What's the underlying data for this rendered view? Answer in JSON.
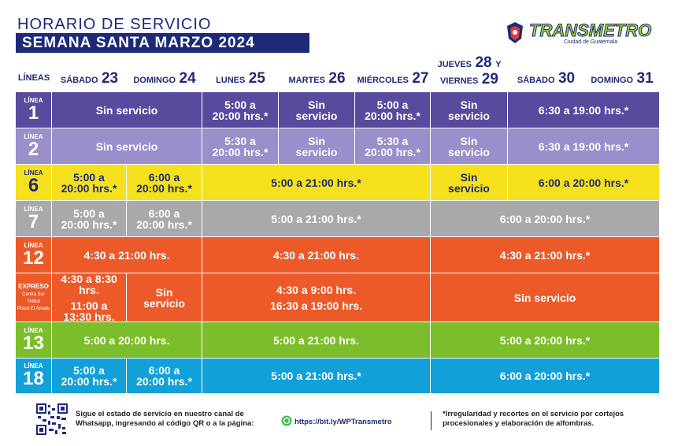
{
  "header": {
    "title": "HORARIO DE SERVICIO",
    "subtitle": "SEMANA SANTA MARZO 2024",
    "logo": "TRANSMETRO",
    "logo_sub": "Ciudad de Guatemala"
  },
  "columns": [
    {
      "day": "LÍNEAS"
    },
    {
      "day": "SÁBADO",
      "num": "23"
    },
    {
      "day": "DOMINGO",
      "num": "24"
    },
    {
      "day": "LUNES",
      "num": "25"
    },
    {
      "day": "MARTES",
      "num": "26"
    },
    {
      "day": "MIÉRCOLES",
      "num": "27"
    },
    {
      "day": "JUEVES",
      "num": "28",
      "joiner": "Y",
      "day2": "VIERNES",
      "num2": "29"
    },
    {
      "day": "SÁBADO",
      "num": "30"
    },
    {
      "day": "DOMINGO",
      "num": "31"
    }
  ],
  "rows": [
    {
      "label": {
        "prefix": "LÍNEA",
        "number": "1"
      },
      "cells": [
        [
          "Sin servicio"
        ],
        [
          "5:00 a 20:00 hrs.*"
        ],
        [
          "Sin servicio"
        ],
        [
          "5:00 a 20:00 hrs.*"
        ],
        [
          "Sin servicio"
        ],
        [
          "6:30 a 19:00 hrs.*"
        ]
      ]
    },
    {
      "label": {
        "prefix": "LÍNEA",
        "number": "2"
      },
      "cells": [
        [
          "Sin servicio"
        ],
        [
          "5:30 a 20:00 hrs.*"
        ],
        [
          "Sin servicio"
        ],
        [
          "5:30 a 20:00 hrs.*"
        ],
        [
          "Sin servicio"
        ],
        [
          "6:30 a 19:00 hrs.*"
        ]
      ]
    },
    {
      "label": {
        "prefix": "LÍNEA",
        "number": "6"
      },
      "cells": [
        [
          "5:00 a 20:00 hrs.*"
        ],
        [
          "6:00 a 20:00 hrs.*"
        ],
        [
          "5:00 a 21:00 hrs.*"
        ],
        [
          "Sin servicio"
        ],
        [
          "6:00 a 20:00 hrs.*"
        ]
      ]
    },
    {
      "label": {
        "prefix": "LÍNEA",
        "number": "7"
      },
      "cells": [
        [
          "5:00 a 20:00 hrs.*"
        ],
        [
          "6:00 a 20:00 hrs.*"
        ],
        [
          "5:00 a 21:00 hrs.*"
        ],
        [
          "6:00 a 20:00 hrs.*"
        ]
      ]
    },
    {
      "label": {
        "prefix": "LÍNEA",
        "number": "12"
      },
      "cells": [
        [
          "4:30 a 21:00 hrs."
        ],
        [
          "4:30 a 21:00 hrs."
        ],
        [
          "4:30 a 21:00 hrs.*"
        ]
      ]
    },
    {
      "label": {
        "prefix": "EXPRESO",
        "stops": [
          "Centra Sur",
          "Trébol",
          "Plaza El Amate"
        ]
      },
      "cells": [
        [
          "4:30 a 8:30 hrs.",
          "11:00 a 13:30 hrs."
        ],
        [
          "Sin servicio"
        ],
        [
          "4:30 a 9:00 hrs.",
          "16:30 a 19:00 hrs."
        ],
        [
          "Sin servicio"
        ]
      ]
    },
    {
      "label": {
        "prefix": "LÍNEA",
        "number": "13"
      },
      "cells": [
        [
          "5:00 a 20:00 hrs."
        ],
        [
          "5:00 a 21:00 hrs."
        ],
        [
          "5:00 a 20:00 hrs.*"
        ]
      ]
    },
    {
      "label": {
        "prefix": "LÍNEA",
        "number": "18"
      },
      "cells": [
        [
          "5:00 a 20:00 hrs.*"
        ],
        [
          "6:00 a 20:00 hrs.*"
        ],
        [
          "5:00 a 21:00 hrs.*"
        ],
        [
          "6:00 a 20:00 hrs.*"
        ]
      ]
    }
  ],
  "footer": {
    "info": "Sigue el estado de servicio en nuestro canal de Whatsapp, ingresando al código QR o a la página:",
    "link": "https://bit.ly/WPTransmetro",
    "note": "*Irregularidad y recortes en el servicio por cortejos procesionales y elaboración de alfombras."
  }
}
